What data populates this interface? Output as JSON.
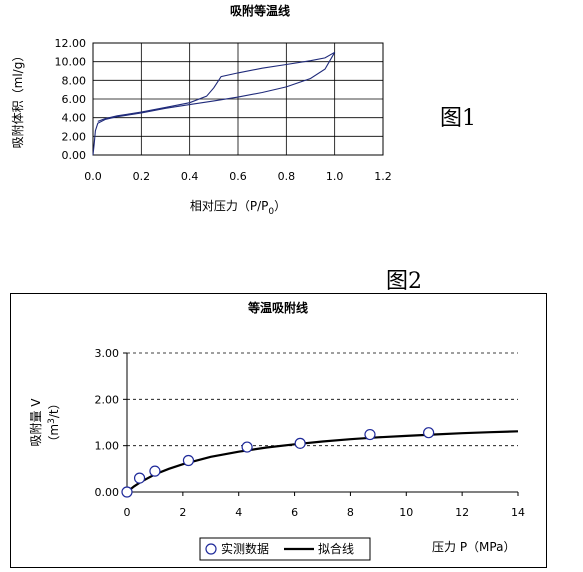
{
  "figure_labels": {
    "fig1": "图1",
    "fig2": "图2"
  },
  "chart_data": [
    {
      "type": "line",
      "title": "吸附等温线",
      "xlabel": "相对压力（P/P",
      "xlabel_sub": "0",
      "xlabel_end": "）",
      "ylabel": "吸附体积（ml/g）",
      "xlim": [
        0,
        1.2
      ],
      "ylim": [
        0,
        12
      ],
      "x_ticks": [
        "0.0",
        "0.2",
        "0.4",
        "0.6",
        "0.8",
        "1.0",
        "1.2"
      ],
      "y_ticks": [
        "0.00",
        "2.00",
        "4.00",
        "6.00",
        "8.00",
        "10.00",
        "12.00"
      ],
      "grid": true,
      "series": [
        {
          "x": [
            0.0,
            0.005,
            0.01,
            0.02,
            0.05,
            0.1,
            0.2,
            0.3,
            0.4,
            0.5,
            0.6,
            0.7,
            0.8,
            0.9,
            0.96,
            1.0
          ],
          "y": [
            0.0,
            1.2,
            2.6,
            3.4,
            3.8,
            4.1,
            4.5,
            5.0,
            5.4,
            5.8,
            6.2,
            6.7,
            7.3,
            8.2,
            9.2,
            11.0
          ]
        },
        {
          "x": [
            1.0,
            0.96,
            0.9,
            0.8,
            0.7,
            0.6,
            0.53,
            0.5,
            0.47,
            0.4,
            0.3,
            0.2,
            0.1,
            0.05,
            0.02
          ],
          "y": [
            11.0,
            10.4,
            10.1,
            9.7,
            9.3,
            8.8,
            8.4,
            7.2,
            6.3,
            5.6,
            5.1,
            4.6,
            4.2,
            3.9,
            3.6
          ]
        }
      ]
    },
    {
      "type": "scatter",
      "title": "等温吸附线",
      "xlabel": "压力 P（MPa）",
      "ylabel": "吸附量 V",
      "ylabel_unit_pre": "（m",
      "ylabel_unit_sup": "3",
      "ylabel_unit_post": "/t）",
      "xlim": [
        0,
        14
      ],
      "ylim": [
        0,
        3
      ],
      "x_ticks": [
        "0",
        "2",
        "4",
        "6",
        "8",
        "10",
        "12",
        "14"
      ],
      "y_ticks": [
        "0.00",
        "1.00",
        "2.00",
        "3.00"
      ],
      "grid": "dashed-horizontal",
      "legend_placement": "bottom",
      "series": [
        {
          "name": "实测数据",
          "x": [
            0,
            0.45,
            1.0,
            2.2,
            4.3,
            6.2,
            8.7,
            10.8
          ],
          "y": [
            0.0,
            0.3,
            0.45,
            0.68,
            0.97,
            1.05,
            1.24,
            1.28
          ]
        },
        {
          "name": "拟合线",
          "type": "line",
          "x": [
            0,
            0.25,
            0.5,
            1,
            1.5,
            2,
            3,
            4,
            5,
            6,
            7,
            8,
            9,
            10,
            11,
            12,
            13,
            14
          ],
          "y": [
            0,
            0.12,
            0.22,
            0.38,
            0.5,
            0.6,
            0.76,
            0.87,
            0.96,
            1.03,
            1.09,
            1.14,
            1.18,
            1.21,
            1.24,
            1.27,
            1.29,
            1.31
          ]
        }
      ]
    }
  ]
}
